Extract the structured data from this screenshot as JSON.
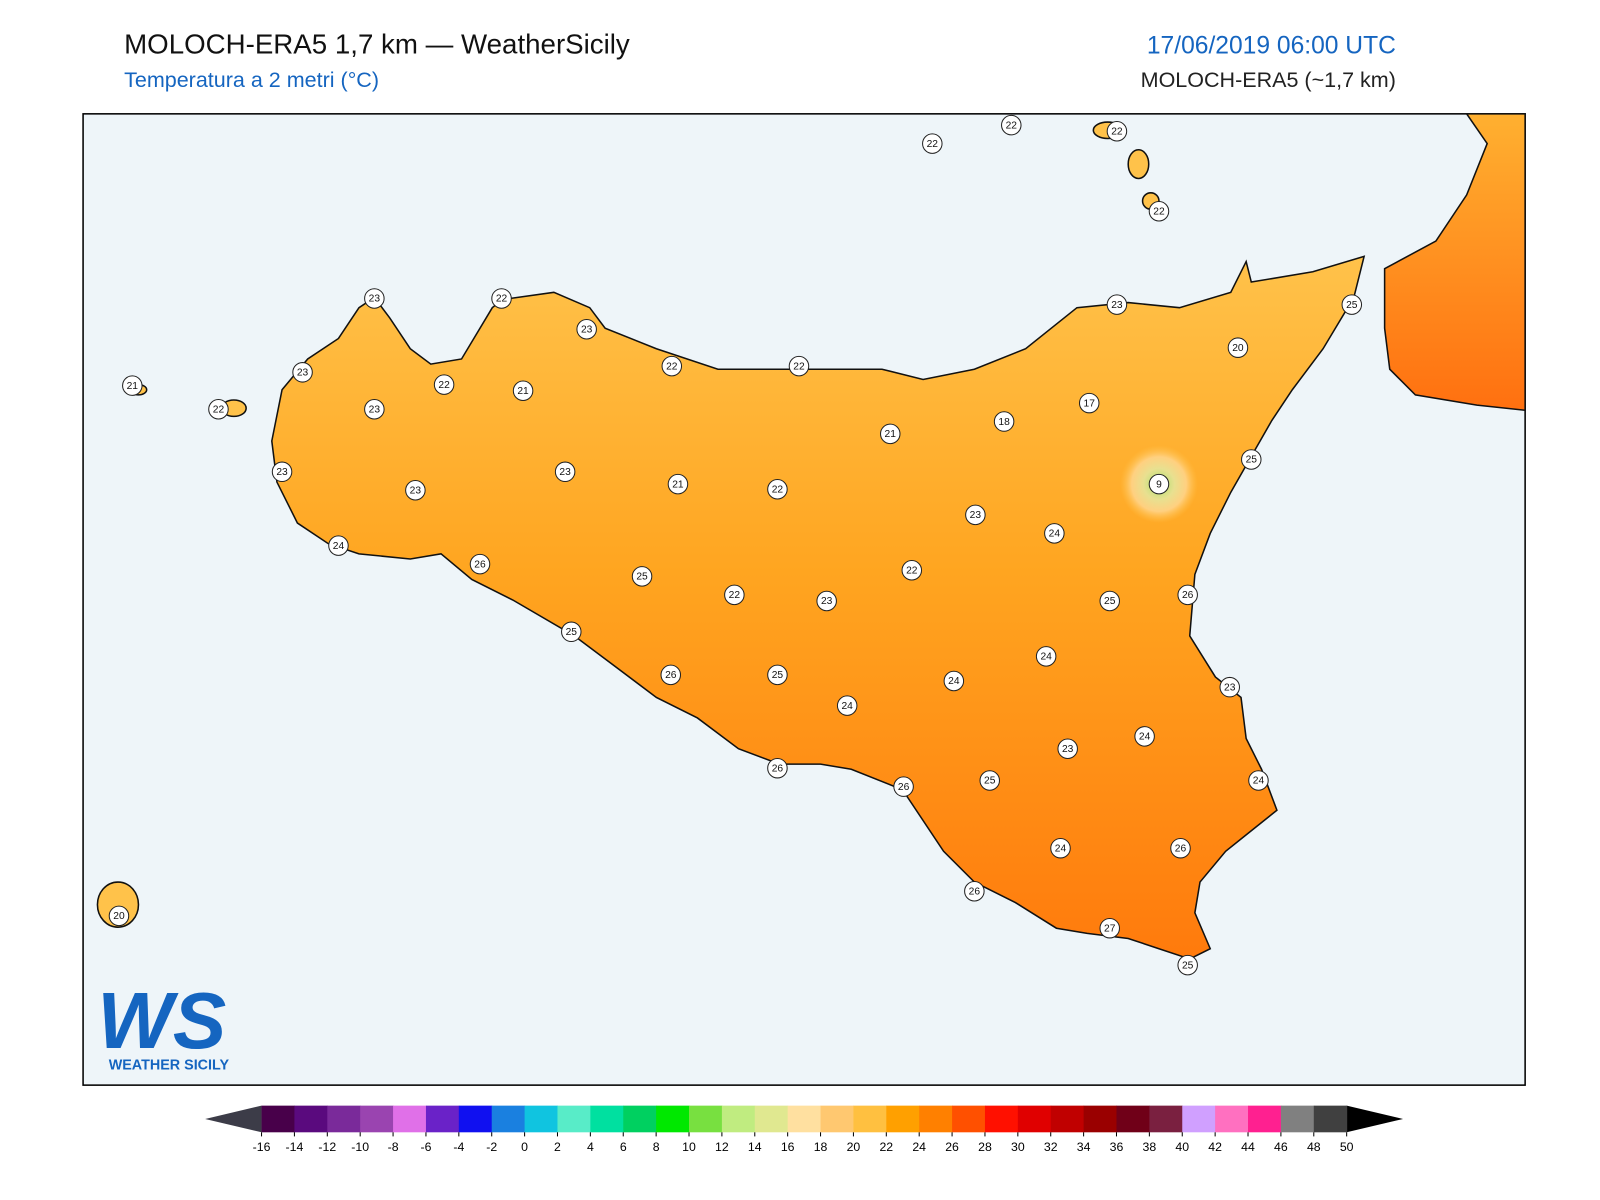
{
  "header": {
    "title": "MOLOCH-ERA5 1,7 km — WeatherSicily",
    "subtitle": "Temperatura a 2 metri (°C)",
    "date": "17/06/2019 06:00 UTC",
    "model": "MOLOCH-ERA5 (~1,7 km)"
  },
  "stations": [
    23,
    22,
    23,
    23,
    22,
    21,
    22,
    22,
    21,
    22,
    23,
    21,
    18,
    17,
    23,
    20,
    25,
    23,
    23,
    23,
    21,
    22,
    23,
    24,
    9,
    25,
    24,
    26,
    25,
    22,
    22,
    23,
    25,
    26,
    25,
    24,
    26,
    25,
    24,
    23,
    24,
    24,
    23,
    26,
    26,
    25,
    24,
    24,
    26,
    26,
    27,
    25,
    20,
    22,
    22,
    22,
    22
  ],
  "colorbar": {
    "ticks": [
      -16,
      -14,
      -12,
      -10,
      -8,
      -6,
      -4,
      -2,
      0,
      2,
      4,
      6,
      8,
      10,
      12,
      14,
      16,
      18,
      20,
      22,
      24,
      26,
      28,
      30,
      32,
      34,
      36,
      38,
      40,
      42,
      44,
      46,
      48,
      50
    ],
    "under": "#3c3c48",
    "over": "#000000",
    "colors": [
      "#48004a",
      "#5a0a7e",
      "#7a2a9a",
      "#9a44b0",
      "#e070e8",
      "#6a22c8",
      "#1010f0",
      "#1a80e0",
      "#10c4e0",
      "#58ecc8",
      "#00e0a0",
      "#00d060",
      "#00e800",
      "#78e040",
      "#c0ec80",
      "#e0e890",
      "#ffe0a0",
      "#ffc870",
      "#ffc040",
      "#ffa000",
      "#ff8000",
      "#ff5000",
      "#ff1000",
      "#e00000",
      "#c00000",
      "#9a0000",
      "#700018",
      "#7a2040",
      "#d0a0ff",
      "#ff70c0",
      "#ff2090",
      "#808080",
      "#404040"
    ]
  },
  "logo": {
    "mark": "WS",
    "text": "WEATHER SICILY"
  }
}
